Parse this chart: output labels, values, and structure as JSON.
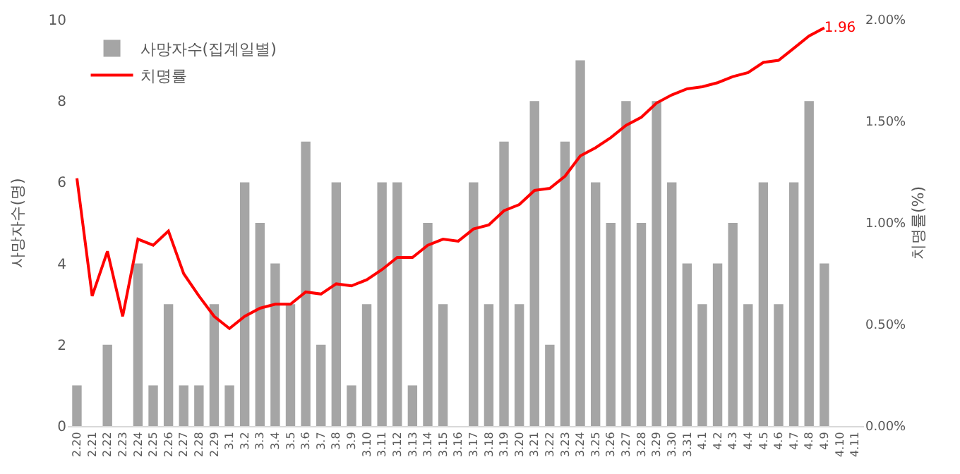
{
  "chart_data": {
    "type": "bar",
    "categories": [
      "2.20",
      "2.21",
      "2.22",
      "2.23",
      "2.24",
      "2.25",
      "2.26",
      "2.27",
      "2.28",
      "2.29",
      "3.1",
      "3.2",
      "3.3",
      "3.4",
      "3.5",
      "3.6",
      "3.7",
      "3.8",
      "3.9",
      "3.10",
      "3.11",
      "3.12",
      "3.13",
      "3.14",
      "3.15",
      "3.16",
      "3.17",
      "3.18",
      "3.19",
      "3.20",
      "3.21",
      "3.22",
      "3.23",
      "3.24",
      "3.25",
      "3.26",
      "3.27",
      "3.28",
      "3.29",
      "3.30",
      "3.31",
      "4.1",
      "4.2",
      "4.3",
      "4.4",
      "4.5",
      "4.6",
      "4.7",
      "4.8",
      "4.9",
      "4.10",
      "4.11"
    ],
    "series": [
      {
        "name": "사망자수(집계일별)",
        "color": "#a5a5a5",
        "values": [
          1,
          0,
          2,
          0,
          4,
          1,
          3,
          1,
          1,
          3,
          1,
          6,
          5,
          4,
          3,
          7,
          2,
          6,
          1,
          3,
          6,
          6,
          1,
          5,
          3,
          0,
          6,
          3,
          7,
          3,
          8,
          2,
          7,
          9,
          6,
          5,
          8,
          5,
          8,
          6,
          4,
          3,
          4,
          5,
          3,
          6,
          3,
          6,
          8,
          4,
          null,
          null
        ]
      },
      {
        "name": "치명률",
        "type": "line",
        "axis": "y2",
        "color": "#ff0000",
        "values": [
          1.22,
          0.64,
          0.86,
          0.54,
          0.92,
          0.89,
          0.96,
          0.75,
          0.64,
          0.54,
          0.48,
          0.54,
          0.58,
          0.6,
          0.6,
          0.66,
          0.65,
          0.7,
          0.69,
          0.72,
          0.77,
          0.83,
          0.83,
          0.89,
          0.92,
          0.91,
          0.97,
          0.99,
          1.06,
          1.09,
          1.16,
          1.17,
          1.23,
          1.33,
          1.37,
          1.42,
          1.48,
          1.52,
          1.59,
          1.63,
          1.66,
          1.67,
          1.69,
          1.72,
          1.74,
          1.79,
          1.8,
          1.86,
          1.92,
          1.96,
          null,
          null
        ],
        "value_labels": [
          null,
          null,
          null,
          null,
          null,
          null,
          null,
          null,
          null,
          null,
          null,
          null,
          null,
          null,
          null,
          null,
          null,
          null,
          null,
          null,
          null,
          null,
          null,
          null,
          null,
          null,
          null,
          null,
          null,
          null,
          null,
          null,
          null,
          null,
          null,
          null,
          null,
          null,
          null,
          null,
          null,
          null,
          null,
          null,
          null,
          null,
          null,
          null,
          null,
          "1.96",
          null,
          null
        ]
      }
    ],
    "ylabel": "사망자수(명)",
    "y2label": "치명률(%)",
    "ylim": [
      0,
      10
    ],
    "yticks": [
      0,
      2,
      4,
      6,
      8,
      10
    ],
    "y2lim": [
      0,
      2
    ],
    "y2ticks": [
      {
        "value": 0,
        "label": "0.00%"
      },
      {
        "value": 0.5,
        "label": "0.50%"
      },
      {
        "value": 1,
        "label": "1.00%"
      },
      {
        "value": 1.5,
        "label": "1.50%"
      },
      {
        "value": 2,
        "label": "2.00%"
      }
    ],
    "grid": false,
    "legend": "top left",
    "marker": "none",
    "line_style": "solid"
  }
}
